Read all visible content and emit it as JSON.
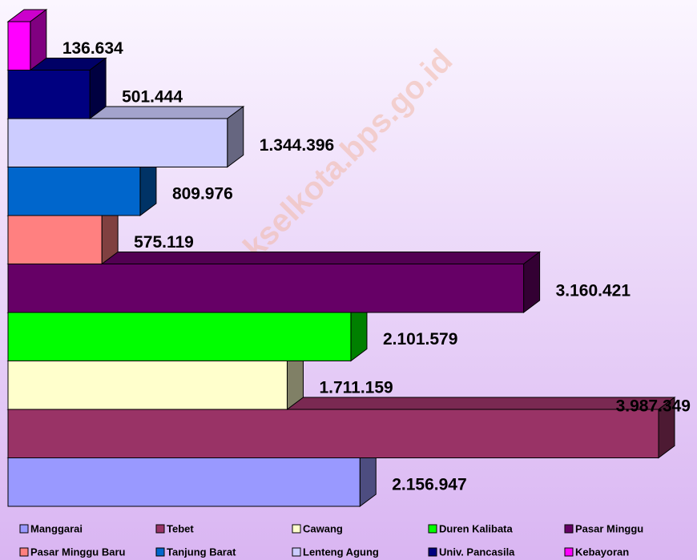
{
  "chart_data": {
    "type": "bar3d_horizontal",
    "watermark": "http://jakselkota.bps.go.id",
    "categories": [
      "Manggarai",
      "Tebet",
      "Cawang",
      "Duren Kalibata",
      "Pasar Minggu",
      "Pasar Minggu Baru",
      "Tanjung Barat",
      "Lenteng Agung",
      "Univ. Pancasila",
      "Kebayoran"
    ],
    "values": [
      2156947,
      3987349,
      1711159,
      2101579,
      3160421,
      575119,
      809976,
      1344396,
      501444,
      136634
    ],
    "value_labels": [
      "2.156.947",
      "3.987.349",
      "1.711.159",
      "2.101.579",
      "3.160.421",
      "575.119",
      "809.976",
      "1.344.396",
      "501.444",
      "136.634"
    ],
    "colors": [
      "#9999ff",
      "#993366",
      "#ffffcc",
      "#00ff00",
      "#660066",
      "#ff8080",
      "#0066cc",
      "#ccccff",
      "#000080",
      "#ff00ff"
    ],
    "legend": "bottom"
  }
}
